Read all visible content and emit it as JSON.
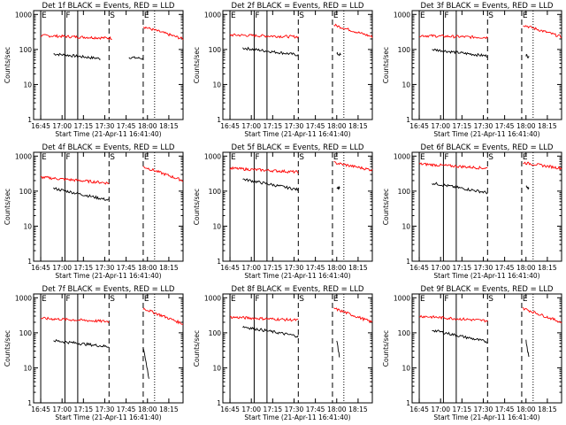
{
  "ylabel": "Counts/sec",
  "xlabel": "Start Time (21-Apr-11 16:41:40)",
  "x_tick_labels": [
    "16:45",
    "17:00",
    "17:15",
    "17:30",
    "17:45",
    "18:00",
    "18:15"
  ],
  "y_tick_labels": [
    "1",
    "10",
    "100",
    "1000"
  ],
  "colors": {
    "events": "#000000",
    "lld": "#ff0000",
    "axes": "#000000"
  },
  "marker_legend": {
    "E": "E",
    "F": "F",
    "S": "S"
  },
  "chart_data": [
    {
      "type": "line",
      "title": "Det 1f BLACK = Events, RED = LLD",
      "yscale": "log",
      "ylim": [
        1,
        1000
      ],
      "xlim_minutes": [
        -5,
        100
      ],
      "series": [
        {
          "name": "Events",
          "values_desc": "black",
          "ranges": [
            [
              9,
              42,
              75,
              55
            ],
            [
              62,
              72,
              60,
              55
            ]
          ]
        },
        {
          "name": "LLD",
          "values_desc": "red",
          "ranges": [
            [
              0,
              50,
              250,
              210
            ],
            [
              72,
              100,
              450,
              200
            ]
          ]
        }
      ],
      "markers": [
        {
          "label": "E",
          "x": 0
        },
        {
          "label": "F",
          "x": 17
        },
        {
          "label": "S",
          "x": 48
        },
        {
          "label": "E",
          "x": 72
        }
      ]
    },
    {
      "type": "line",
      "title": "Det 2f BLACK = Events, RED = LLD",
      "yscale": "log",
      "ylim": [
        1,
        1000
      ],
      "xlim_minutes": [
        -5,
        100
      ],
      "series": [
        {
          "name": "Events",
          "ranges": [
            [
              9,
              48,
              110,
              70
            ],
            [
              75,
              78,
              75,
              70
            ]
          ]
        },
        {
          "name": "LLD",
          "ranges": [
            [
              0,
              48,
              260,
              230
            ],
            [
              73,
              100,
              500,
              230
            ]
          ]
        }
      ],
      "markers": [
        {
          "label": "E",
          "x": 0
        },
        {
          "label": "F",
          "x": 17
        },
        {
          "label": "S",
          "x": 48
        },
        {
          "label": "E",
          "x": 72
        }
      ]
    },
    {
      "type": "line",
      "title": "Det 3f BLACK = Events, RED = LLD",
      "yscale": "log",
      "ylim": [
        1,
        1000
      ],
      "xlim_minutes": [
        -5,
        100
      ],
      "series": [
        {
          "name": "Events",
          "ranges": [
            [
              9,
              48,
              100,
              65
            ],
            [
              75,
              77,
              70,
              60
            ]
          ]
        },
        {
          "name": "LLD",
          "ranges": [
            [
              0,
              48,
              250,
              220
            ],
            [
              73,
              100,
              500,
              230
            ]
          ]
        }
      ],
      "markers": [
        {
          "label": "E",
          "x": 0
        },
        {
          "label": "F",
          "x": 17
        },
        {
          "label": "S",
          "x": 48
        },
        {
          "label": "E",
          "x": 72
        }
      ]
    },
    {
      "type": "line",
      "title": "Det 4f BLACK = Events, RED = LLD",
      "yscale": "log",
      "ylim": [
        1,
        1000
      ],
      "xlim_minutes": [
        -5,
        100
      ],
      "series": [
        {
          "name": "Events",
          "ranges": [
            [
              9,
              48,
              120,
              55
            ]
          ]
        },
        {
          "name": "LLD",
          "ranges": [
            [
              0,
              48,
              250,
              170
            ],
            [
              72,
              100,
              500,
              200
            ]
          ]
        }
      ],
      "markers": [
        {
          "label": "E",
          "x": 0
        },
        {
          "label": "F",
          "x": 17
        },
        {
          "label": "S",
          "x": 48
        },
        {
          "label": "E",
          "x": 72
        }
      ]
    },
    {
      "type": "line",
      "title": "Det 5f BLACK = Events, RED = LLD",
      "yscale": "log",
      "ylim": [
        1,
        1000
      ],
      "xlim_minutes": [
        -5,
        100
      ],
      "series": [
        {
          "name": "Events",
          "ranges": [
            [
              9,
              48,
              220,
              110
            ],
            [
              75,
              77,
              130,
              125
            ]
          ]
        },
        {
          "name": "LLD",
          "ranges": [
            [
              0,
              48,
              450,
              350
            ],
            [
              73,
              100,
              650,
              400
            ]
          ]
        }
      ],
      "markers": [
        {
          "label": "E",
          "x": 0
        },
        {
          "label": "F",
          "x": 17
        },
        {
          "label": "S",
          "x": 48
        },
        {
          "label": "E",
          "x": 72
        }
      ]
    },
    {
      "type": "line",
      "title": "Det 6f BLACK = Events, RED = LLD",
      "yscale": "log",
      "ylim": [
        1,
        1000
      ],
      "xlim_minutes": [
        -5,
        100
      ],
      "series": [
        {
          "name": "Events",
          "ranges": [
            [
              9,
              48,
              170,
              90
            ],
            [
              75,
              77,
              130,
              120
            ]
          ]
        },
        {
          "name": "LLD",
          "ranges": [
            [
              0,
              48,
              600,
              450
            ],
            [
              73,
              100,
              650,
              450
            ]
          ]
        }
      ],
      "markers": [
        {
          "label": "E",
          "x": 0
        },
        {
          "label": "F",
          "x": 17
        },
        {
          "label": "S",
          "x": 48
        },
        {
          "label": "E",
          "x": 72
        }
      ]
    },
    {
      "type": "line",
      "title": "Det 7f BLACK = Events, RED = LLD",
      "yscale": "log",
      "ylim": [
        1,
        1000
      ],
      "xlim_minutes": [
        -5,
        100
      ],
      "series": [
        {
          "name": "Events",
          "ranges": [
            [
              9,
              48,
              60,
              40
            ],
            [
              72,
              76,
              40,
              5
            ]
          ]
        },
        {
          "name": "LLD",
          "ranges": [
            [
              0,
              48,
              260,
              210
            ],
            [
              72,
              100,
              500,
              180
            ]
          ]
        }
      ],
      "markers": [
        {
          "label": "E",
          "x": 0
        },
        {
          "label": "F",
          "x": 17
        },
        {
          "label": "S",
          "x": 48
        },
        {
          "label": "E",
          "x": 72
        }
      ]
    },
    {
      "type": "line",
      "title": "Det 8f BLACK = Events, RED = LLD",
      "yscale": "log",
      "ylim": [
        1,
        1000
      ],
      "xlim_minutes": [
        -5,
        100
      ],
      "series": [
        {
          "name": "Events",
          "ranges": [
            [
              9,
              48,
              150,
              80
            ],
            [
              75,
              77,
              60,
              20
            ]
          ]
        },
        {
          "name": "LLD",
          "ranges": [
            [
              0,
              48,
              280,
              230
            ],
            [
              73,
              100,
              500,
              200
            ]
          ]
        }
      ],
      "markers": [
        {
          "label": "E",
          "x": 0
        },
        {
          "label": "F",
          "x": 17
        },
        {
          "label": "S",
          "x": 48
        },
        {
          "label": "E",
          "x": 72
        }
      ]
    },
    {
      "type": "line",
      "title": "Det 9f BLACK = Events, RED = LLD",
      "yscale": "log",
      "ylim": [
        1,
        1000
      ],
      "xlim_minutes": [
        -5,
        100
      ],
      "series": [
        {
          "name": "Events",
          "ranges": [
            [
              9,
              48,
              120,
              55
            ],
            [
              75,
              77,
              60,
              20
            ]
          ]
        },
        {
          "name": "LLD",
          "ranges": [
            [
              0,
              48,
              300,
              220
            ],
            [
              73,
              100,
              500,
              200
            ]
          ]
        }
      ],
      "markers": [
        {
          "label": "E",
          "x": 0
        },
        {
          "label": "F",
          "x": 17
        },
        {
          "label": "S",
          "x": 48
        },
        {
          "label": "E",
          "x": 72
        }
      ]
    }
  ]
}
